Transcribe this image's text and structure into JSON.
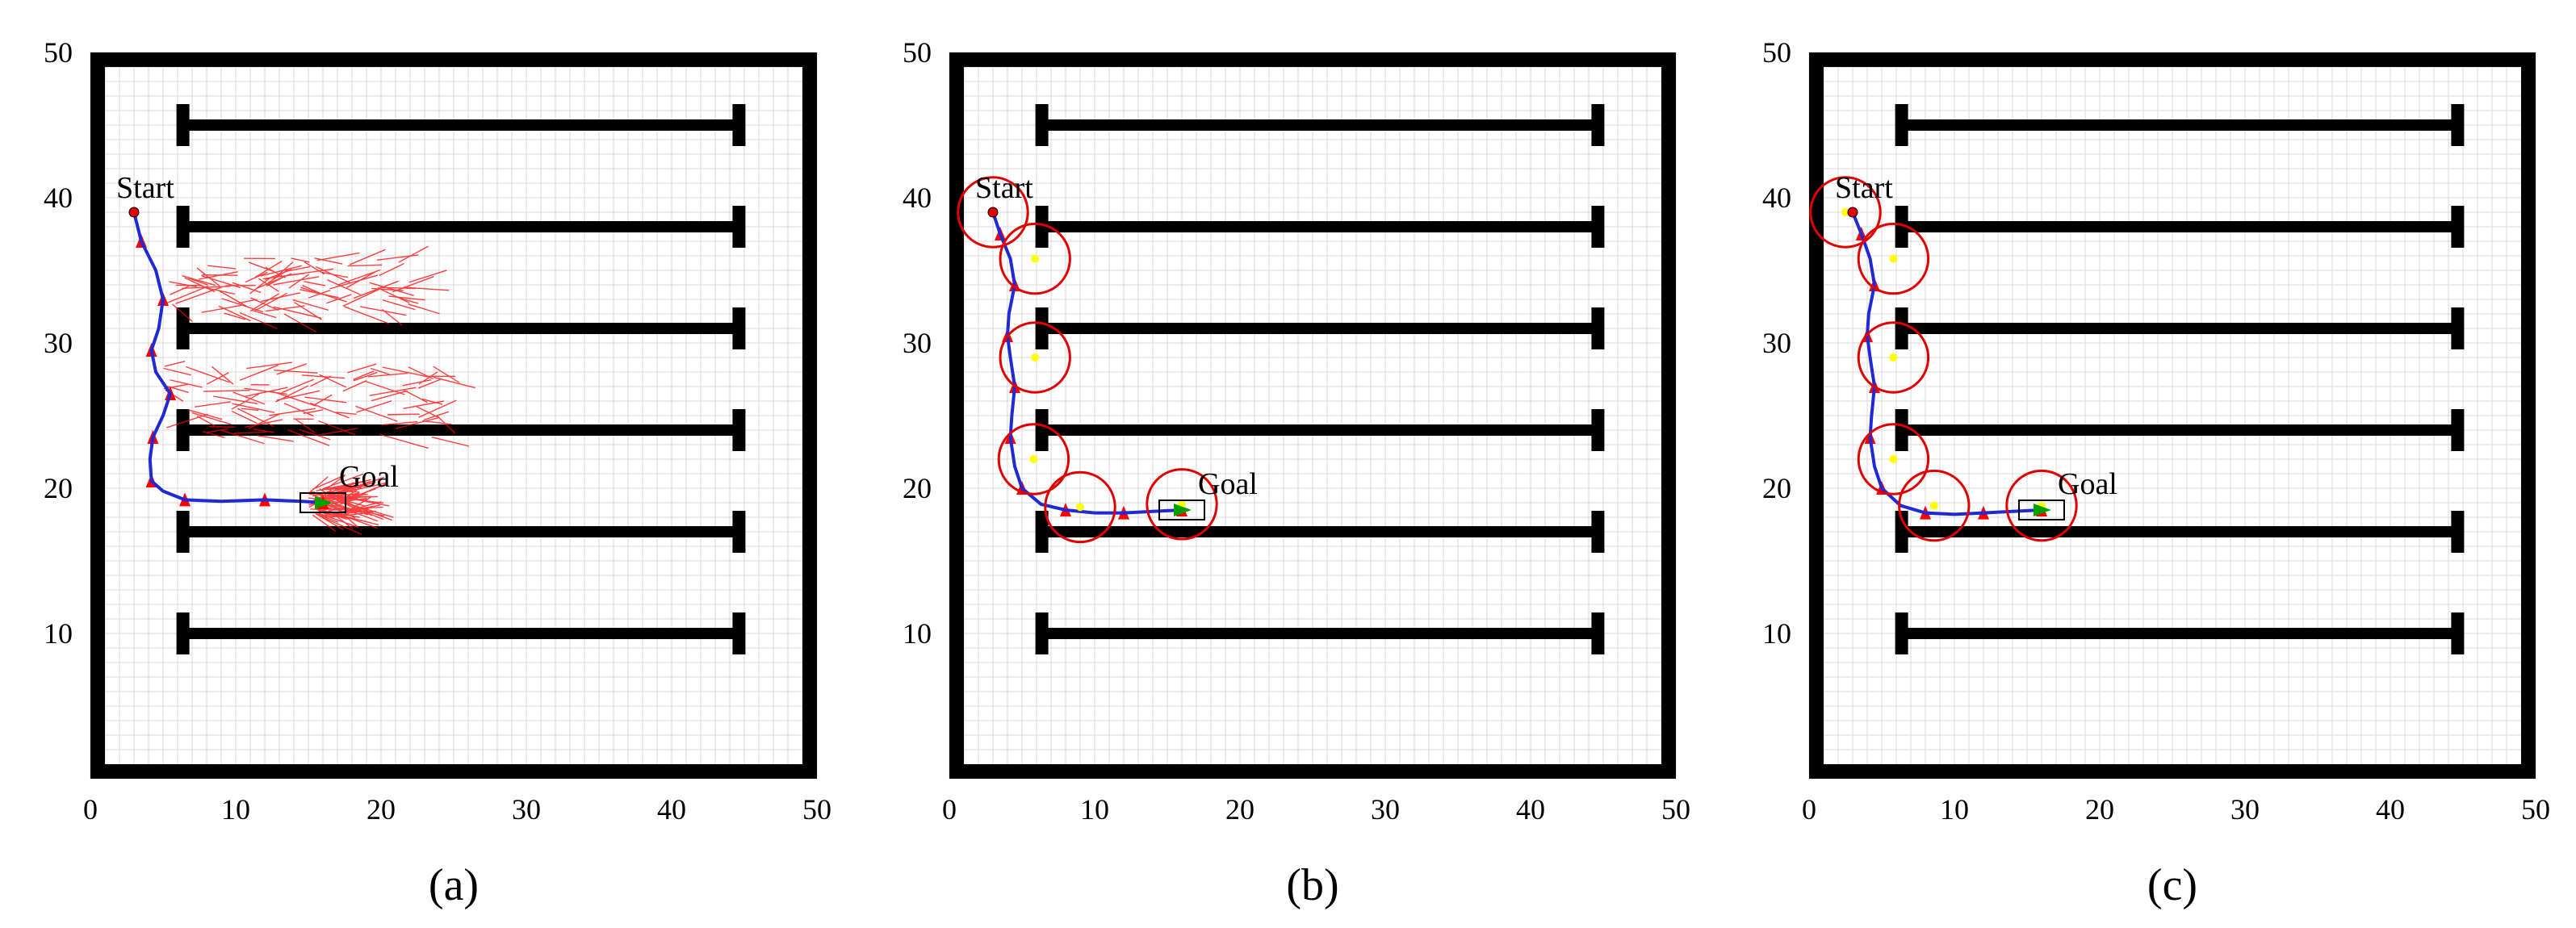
{
  "chart_data": [
    {
      "type": "scatter",
      "caption": "(a)",
      "xlim": [
        0,
        50
      ],
      "ylim": [
        0,
        50
      ],
      "x_ticks": [
        0,
        10,
        20,
        30,
        40,
        50
      ],
      "y_ticks": [
        10,
        20,
        30,
        40,
        50
      ],
      "grid": true,
      "start": {
        "label": "Start",
        "x": 3,
        "y": 39
      },
      "goal": {
        "label": "Goal",
        "x": 16,
        "y": 19
      },
      "path": [
        [
          3,
          39
        ],
        [
          3.5,
          37
        ],
        [
          4.5,
          35
        ],
        [
          5,
          33
        ],
        [
          4.7,
          31
        ],
        [
          4.2,
          29.5
        ],
        [
          4.5,
          28
        ],
        [
          5.5,
          26.5
        ],
        [
          5,
          25
        ],
        [
          4.3,
          23.5
        ],
        [
          4.1,
          22
        ],
        [
          4.2,
          20.5
        ],
        [
          5,
          19.8
        ],
        [
          6.5,
          19.2
        ],
        [
          9,
          19.1
        ],
        [
          12,
          19.2
        ],
        [
          14.5,
          19.1
        ],
        [
          16,
          19
        ]
      ],
      "sample_clusters": [
        {
          "x_range": [
            5,
            24
          ],
          "y_range": [
            32,
            36
          ]
        },
        {
          "x_range": [
            5,
            26
          ],
          "y_range": [
            23.5,
            28.5
          ]
        },
        {
          "x_range": [
            15,
            18
          ],
          "y_range": [
            18,
            20
          ]
        }
      ],
      "circles": []
    },
    {
      "type": "scatter",
      "caption": "(b)",
      "xlim": [
        0,
        50
      ],
      "ylim": [
        0,
        50
      ],
      "x_ticks": [
        0,
        10,
        20,
        30,
        40,
        50
      ],
      "y_ticks": [
        10,
        20,
        30,
        40,
        50
      ],
      "grid": true,
      "start": {
        "label": "Start",
        "x": 3,
        "y": 39
      },
      "goal": {
        "label": "Goal",
        "x": 16,
        "y": 18.5
      },
      "path": [
        [
          3,
          39
        ],
        [
          3.5,
          37.5
        ],
        [
          4.2,
          35.8
        ],
        [
          4.5,
          34
        ],
        [
          4.1,
          32
        ],
        [
          4,
          30.5
        ],
        [
          4.2,
          29
        ],
        [
          4.5,
          27
        ],
        [
          4.3,
          25
        ],
        [
          4.2,
          23.5
        ],
        [
          4.5,
          21.5
        ],
        [
          5,
          20
        ],
        [
          6.3,
          18.9
        ],
        [
          8,
          18.5
        ],
        [
          10,
          18.3
        ],
        [
          12,
          18.3
        ],
        [
          14,
          18.4
        ],
        [
          16,
          18.5
        ]
      ],
      "circles": [
        {
          "x": 3,
          "y": 39,
          "r": 2.4
        },
        {
          "x": 5.9,
          "y": 35.8,
          "r": 2.4
        },
        {
          "x": 5.9,
          "y": 29,
          "r": 2.4
        },
        {
          "x": 5.8,
          "y": 22,
          "r": 2.4
        },
        {
          "x": 9,
          "y": 18.7,
          "r": 2.4
        },
        {
          "x": 16,
          "y": 18.9,
          "r": 2.4
        }
      ],
      "sample_clusters": []
    },
    {
      "type": "scatter",
      "caption": "(c)",
      "xlim": [
        0,
        50
      ],
      "ylim": [
        0,
        50
      ],
      "x_ticks": [
        0,
        10,
        20,
        30,
        40,
        50
      ],
      "y_ticks": [
        10,
        20,
        30,
        40,
        50
      ],
      "grid": true,
      "start": {
        "label": "Start",
        "x": 3,
        "y": 39
      },
      "goal": {
        "label": "Goal",
        "x": 16,
        "y": 18.5
      },
      "path": [
        [
          3,
          39
        ],
        [
          3.6,
          37.5
        ],
        [
          4.2,
          35.8
        ],
        [
          4.5,
          34
        ],
        [
          4.1,
          32
        ],
        [
          4,
          30.5
        ],
        [
          4.2,
          29
        ],
        [
          4.5,
          27
        ],
        [
          4.3,
          25
        ],
        [
          4.2,
          23.5
        ],
        [
          4.5,
          21.5
        ],
        [
          5,
          20
        ],
        [
          6.3,
          18.8
        ],
        [
          8,
          18.3
        ],
        [
          10,
          18.2
        ],
        [
          12,
          18.3
        ],
        [
          14,
          18.4
        ],
        [
          16,
          18.5
        ]
      ],
      "circles": [
        {
          "x": 2.5,
          "y": 39,
          "r": 2.4
        },
        {
          "x": 5.8,
          "y": 35.8,
          "r": 2.4
        },
        {
          "x": 5.8,
          "y": 29,
          "r": 2.4
        },
        {
          "x": 5.8,
          "y": 22,
          "r": 2.4
        },
        {
          "x": 8.6,
          "y": 18.8,
          "r": 2.4
        },
        {
          "x": 16,
          "y": 18.8,
          "r": 2.4
        }
      ],
      "sample_clusters": []
    }
  ],
  "colors": {
    "wall": "#000000",
    "grid": "#d9d9d9",
    "path": "#1f2ad6",
    "samples": "#ff0000",
    "circle": "#e00000",
    "waypoint": "#ffff00",
    "goal_car": "#00a000"
  }
}
